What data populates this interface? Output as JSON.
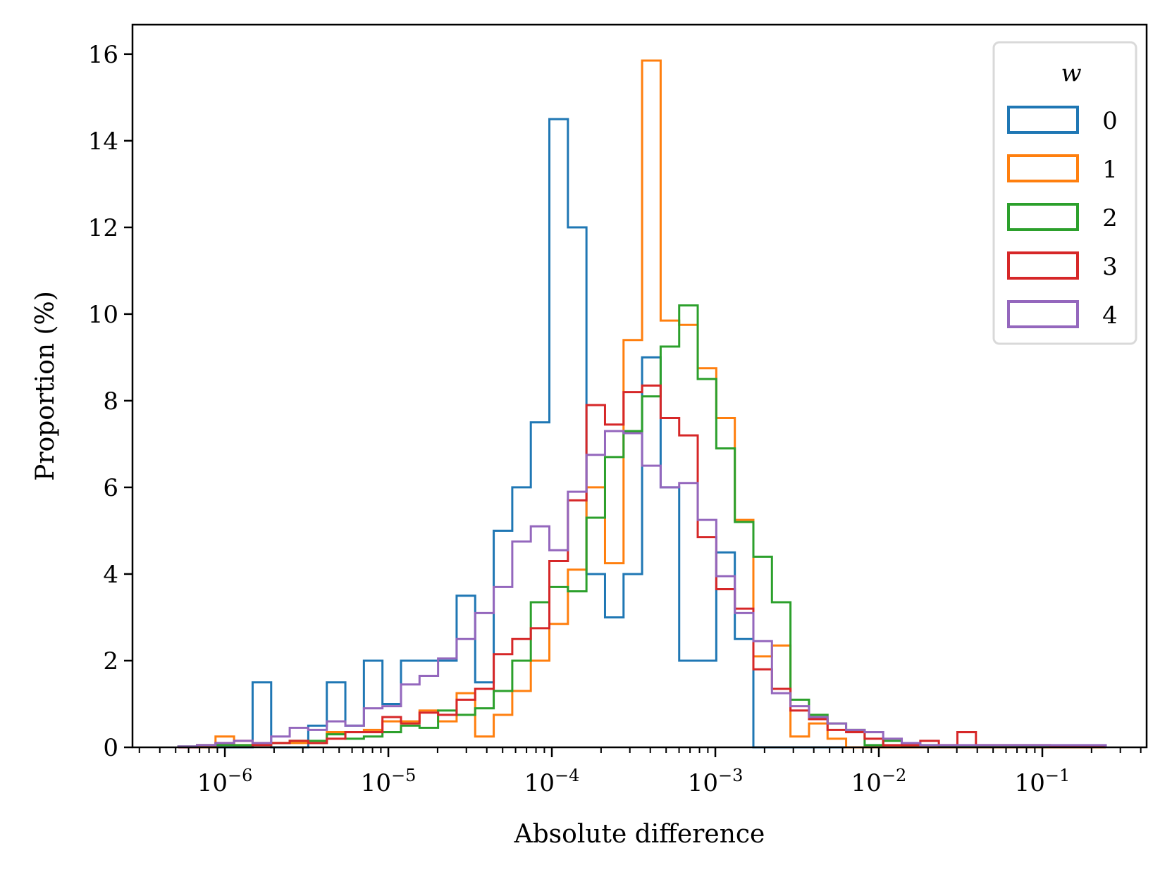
{
  "chart_data": {
    "type": "histogram-step",
    "title": "",
    "xlabel": "Absolute difference",
    "ylabel": "Proportion (%)",
    "xscale": "log",
    "xlim_log10": [
      -6.565,
      -0.362
    ],
    "ylim": [
      0,
      16.68
    ],
    "yticks": [
      0,
      2,
      4,
      6,
      8,
      10,
      12,
      14,
      16
    ],
    "xticks_log10": [
      -6,
      -5,
      -4,
      -3,
      -2,
      -1
    ],
    "xtick_labels": [
      {
        "base": "10",
        "exp": "−6"
      },
      {
        "base": "10",
        "exp": "−5"
      },
      {
        "base": "10",
        "exp": "−4"
      },
      {
        "base": "10",
        "exp": "−3"
      },
      {
        "base": "10",
        "exp": "−2"
      },
      {
        "base": "10",
        "exp": "−1"
      }
    ],
    "bins": {
      "count": 50,
      "log10_start": -6.284,
      "log10_end": -0.612
    },
    "legend": {
      "title": "w",
      "placement": "top-right"
    },
    "grid": false,
    "series": [
      {
        "name": "0",
        "color": "#1f77b4",
        "values": [
          0,
          0,
          0,
          0,
          1.5,
          0,
          0,
          0.5,
          1.5,
          0.5,
          2.0,
          1.0,
          2.0,
          2.0,
          2.0,
          3.5,
          1.5,
          5.0,
          6.0,
          7.5,
          14.5,
          12.0,
          4.0,
          3.0,
          4.0,
          9.0,
          6.0,
          2.0,
          2.0,
          4.5,
          2.5,
          0,
          0,
          0,
          0,
          0,
          0,
          0,
          0,
          0,
          0,
          0,
          0,
          0,
          0,
          0,
          0,
          0,
          0,
          0
        ]
      },
      {
        "name": "1",
        "color": "#ff7f0e",
        "values": [
          0,
          0,
          0.25,
          0.05,
          0.1,
          0.1,
          0.1,
          0.1,
          0.35,
          0.35,
          0.4,
          0.6,
          0.6,
          0.85,
          0.6,
          1.25,
          0.25,
          0.75,
          1.3,
          2.0,
          2.85,
          4.1,
          6.0,
          4.25,
          9.4,
          15.85,
          9.85,
          9.75,
          8.75,
          7.6,
          5.25,
          2.1,
          2.35,
          0.25,
          0.55,
          0.2,
          0,
          0,
          0,
          0,
          0,
          0,
          0,
          0,
          0,
          0,
          0,
          0,
          0,
          0
        ]
      },
      {
        "name": "2",
        "color": "#2ca02c",
        "values": [
          0.02,
          0.05,
          0.05,
          0.05,
          0.05,
          0.1,
          0.15,
          0.15,
          0.3,
          0.2,
          0.25,
          0.35,
          0.5,
          0.45,
          0.85,
          0.75,
          0.9,
          1.3,
          2.0,
          3.35,
          3.7,
          3.6,
          5.3,
          6.7,
          7.3,
          8.1,
          9.25,
          10.2,
          8.5,
          6.9,
          5.2,
          4.4,
          3.35,
          1.1,
          0.75,
          0.55,
          0.4,
          0.05,
          0.15,
          0.05,
          0.05,
          0.02,
          0.02,
          0.02,
          0.02,
          0.02,
          0.02,
          0.02,
          0.02,
          0.02
        ]
      },
      {
        "name": "3",
        "color": "#d62728",
        "values": [
          0,
          0.05,
          0.1,
          0.15,
          0.05,
          0.1,
          0.15,
          0.1,
          0.2,
          0.35,
          0.35,
          0.7,
          0.55,
          0.8,
          0.75,
          1.1,
          1.35,
          2.15,
          2.5,
          2.75,
          4.3,
          5.7,
          7.9,
          7.45,
          8.2,
          8.35,
          7.6,
          7.2,
          4.85,
          3.65,
          3.2,
          1.8,
          1.35,
          0.85,
          0.65,
          0.4,
          0.35,
          0.2,
          0.05,
          0.05,
          0.15,
          0.05,
          0.35,
          0.05,
          0.05,
          0.05,
          0.05,
          0.02,
          0.02,
          0.02
        ]
      },
      {
        "name": "4",
        "color": "#9467bd",
        "values": [
          0.02,
          0.05,
          0.1,
          0.15,
          0.1,
          0.25,
          0.45,
          0.4,
          0.6,
          0.5,
          0.9,
          0.95,
          1.45,
          1.65,
          2.05,
          2.5,
          3.1,
          3.7,
          4.75,
          5.1,
          4.55,
          5.9,
          6.75,
          7.3,
          7.25,
          6.5,
          6.0,
          6.1,
          5.25,
          3.95,
          3.1,
          2.45,
          1.25,
          0.95,
          0.7,
          0.55,
          0.4,
          0.35,
          0.2,
          0.1,
          0.05,
          0.05,
          0.05,
          0.05,
          0.05,
          0.05,
          0.05,
          0.05,
          0.05,
          0.05
        ]
      }
    ]
  }
}
